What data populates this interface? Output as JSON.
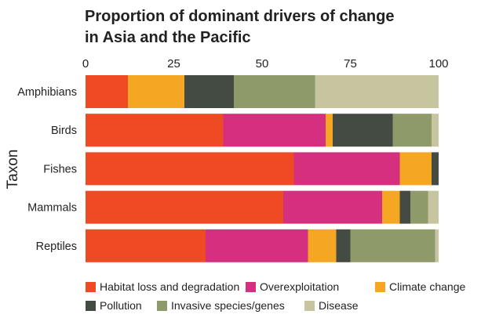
{
  "chart_data": {
    "type": "bar",
    "orientation": "horizontal",
    "stacked": true,
    "title": "Proportion of dominant drivers of change in Asia and the Pacific",
    "title_lines": [
      "Proportion of dominant drivers of change",
      "in Asia and the Pacific"
    ],
    "xlabel": "",
    "ylabel": "Taxon",
    "xlim": [
      0,
      100
    ],
    "xticks": [
      0,
      25,
      50,
      75,
      100
    ],
    "x_axis_position": "top",
    "grid": false,
    "legend_position": "bottom",
    "categories": [
      "Amphibians",
      "Birds",
      "Fishes",
      "Mammals",
      "Reptiles"
    ],
    "series": [
      {
        "name": "Habitat loss and degradation",
        "color": "#ee4a23",
        "values": [
          12,
          39,
          59,
          56,
          34
        ]
      },
      {
        "name": "Overexploitation",
        "color": "#d4307f",
        "values": [
          0,
          29,
          30,
          28,
          29
        ]
      },
      {
        "name": "Climate change",
        "color": "#f5a623",
        "values": [
          16,
          2,
          9,
          5,
          8
        ]
      },
      {
        "name": "Pollution",
        "color": "#434b42",
        "values": [
          14,
          17,
          2,
          3,
          4
        ]
      },
      {
        "name": "Invasive species/genes",
        "color": "#8f9a6b",
        "values": [
          23,
          11,
          0,
          5,
          24
        ]
      },
      {
        "name": "Disease",
        "color": "#c6c5a0",
        "values": [
          35,
          2,
          0,
          3,
          1
        ]
      }
    ]
  }
}
